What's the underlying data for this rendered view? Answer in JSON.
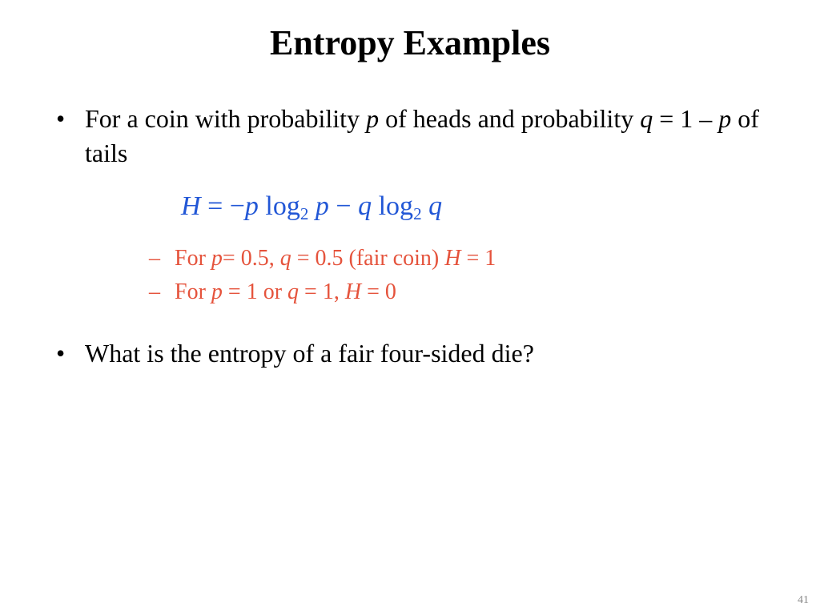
{
  "title": "Entropy Examples",
  "page_number": "41",
  "colors": {
    "text": "#000000",
    "formula": "#2257d6",
    "example": "#e5533c",
    "background": "#ffffff"
  },
  "bullet1": {
    "pre": "For a coin with probability ",
    "var1": "p",
    "mid1": " of heads and probability ",
    "var2": "q",
    "eqpart": " = 1 – ",
    "var3": "p",
    "post": " of tails"
  },
  "formula": {
    "H": "H",
    "eq": " = −",
    "p1": "p",
    "log1": " log",
    "log1_sub": "2",
    "sp1": " ",
    "p2": "p",
    "minus": " − ",
    "q1": "q",
    "log2": " log",
    "log2_sub": "2",
    "sp2": " ",
    "q2": "q"
  },
  "example1": {
    "pre": "For ",
    "v1": "p",
    "t1": "= 0.5, ",
    "v2": "q",
    "t2": " = 0.5 (fair coin) ",
    "v3": "H",
    "t3": " = 1"
  },
  "example2": {
    "pre": "For ",
    "v1": "p",
    "t1": " = 1 or ",
    "v2": "q",
    "t2": " = 1, ",
    "v3": "H",
    "t3": " = 0"
  },
  "bullet2": "What is the entropy of a fair four-sided die?"
}
